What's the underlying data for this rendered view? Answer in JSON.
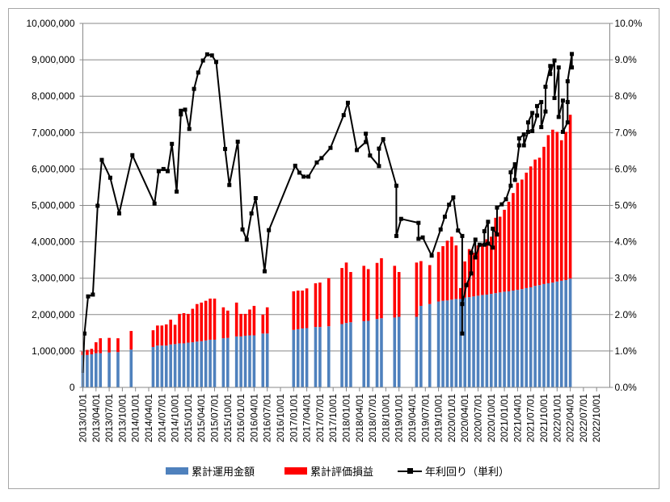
{
  "chart_data": {
    "type": "bar+line",
    "title": "",
    "y_left": {
      "min": 0,
      "max": 10000000,
      "step": 1000000,
      "tick_labels": [
        "0",
        "1,000,000",
        "2,000,000",
        "3,000,000",
        "4,000,000",
        "5,000,000",
        "6,000,000",
        "7,000,000",
        "8,000,000",
        "9,000,000",
        "10,000,000"
      ]
    },
    "y_right": {
      "min": 0,
      "max": 10,
      "step": 1,
      "tick_labels": [
        "0.0%",
        "1.0%",
        "2.0%",
        "3.0%",
        "4.0%",
        "5.0%",
        "6.0%",
        "7.0%",
        "8.0%",
        "9.0%",
        "10.0%"
      ]
    },
    "x_axis": {
      "min_year": 2013.0,
      "max_year": 2023.0,
      "tick_labels": [
        "2013/01/01",
        "2013/04/01",
        "2013/07/01",
        "2013/10/01",
        "2014/01/01",
        "2014/04/01",
        "2014/07/01",
        "2014/10/01",
        "2015/01/01",
        "2015/04/01",
        "2015/07/01",
        "2015/10/01",
        "2016/01/01",
        "2016/04/01",
        "2016/07/01",
        "2016/10/01",
        "2017/01/01",
        "2017/04/01",
        "2017/07/01",
        "2017/10/01",
        "2018/01/01",
        "2018/04/01",
        "2018/07/01",
        "2018/10/01",
        "2019/01/01",
        "2019/04/01",
        "2019/07/01",
        "2019/10/01",
        "2020/01/01",
        "2020/04/01",
        "2020/07/01",
        "2020/10/01",
        "2021/01/01",
        "2021/04/01",
        "2021/07/01",
        "2021/10/01",
        "2022/01/01",
        "2022/04/01",
        "2022/07/01",
        "2022/10/01"
      ]
    },
    "grid": true,
    "legend_position": "bottom",
    "colors": {
      "invested": "#4f81bd",
      "gain": "#ff0000",
      "rate": "#000000",
      "grid": "#888888"
    },
    "legend": [
      "累計運用金額",
      "累計評価損益",
      "年利回り（単利）"
    ],
    "bars": [
      [
        "2013-01",
        0.89,
        0.11
      ],
      [
        "2013-02",
        0.89,
        0.14
      ],
      [
        "2013-03",
        0.91,
        0.15
      ],
      [
        "2013-04",
        0.94,
        0.3
      ],
      [
        "2013-05",
        0.94,
        0.41
      ],
      [
        "2013-07",
        0.96,
        0.4
      ],
      [
        "2013-09",
        0.97,
        0.38
      ],
      [
        "2013-12",
        1.04,
        0.51
      ],
      [
        "2014-05",
        1.11,
        0.46
      ],
      [
        "2014-06",
        1.15,
        0.55
      ],
      [
        "2014-07",
        1.15,
        0.55
      ],
      [
        "2014-08",
        1.15,
        0.58
      ],
      [
        "2014-09",
        1.18,
        0.68
      ],
      [
        "2014-10",
        1.19,
        0.53
      ],
      [
        "2014-11",
        1.21,
        0.81
      ],
      [
        "2014-12",
        1.21,
        0.83
      ],
      [
        "2015-01",
        1.23,
        0.79
      ],
      [
        "2015-02",
        1.24,
        0.92
      ],
      [
        "2015-03",
        1.26,
        1.03
      ],
      [
        "2015-04",
        1.27,
        1.06
      ],
      [
        "2015-05",
        1.29,
        1.09
      ],
      [
        "2015-06",
        1.31,
        1.13
      ],
      [
        "2015-07",
        1.31,
        1.13
      ],
      [
        "2015-09",
        1.35,
        0.85
      ],
      [
        "2015-10",
        1.36,
        0.75
      ],
      [
        "2015-12",
        1.4,
        0.93
      ],
      [
        "2016-01",
        1.4,
        0.62
      ],
      [
        "2016-02",
        1.42,
        0.6
      ],
      [
        "2016-03",
        1.43,
        0.71
      ],
      [
        "2016-04",
        1.43,
        0.81
      ],
      [
        "2016-06",
        1.48,
        0.52
      ],
      [
        "2016-07",
        1.48,
        0.72
      ],
      [
        "2017-01",
        1.58,
        1.06
      ],
      [
        "2017-02",
        1.6,
        1.06
      ],
      [
        "2017-03",
        1.62,
        1.04
      ],
      [
        "2017-04",
        1.63,
        1.09
      ],
      [
        "2017-06",
        1.66,
        1.2
      ],
      [
        "2017-07",
        1.66,
        1.22
      ],
      [
        "2017-09",
        1.68,
        1.32
      ],
      [
        "2017-12",
        1.74,
        1.54
      ],
      [
        "2018-01",
        1.77,
        1.66
      ],
      [
        "2018-02",
        1.79,
        1.38
      ],
      [
        "2018-05",
        1.82,
        1.52
      ],
      [
        "2018-06",
        1.83,
        1.42
      ],
      [
        "2018-08",
        1.88,
        1.54
      ],
      [
        "2018-09",
        1.9,
        1.65
      ],
      [
        "2018-12",
        1.92,
        1.42
      ],
      [
        "2019-01",
        1.94,
        1.23
      ],
      [
        "2019-05",
        1.94,
        1.49
      ],
      [
        "2019-06",
        2.24,
        1.23
      ],
      [
        "2019-08",
        2.29,
        1.07
      ],
      [
        "2019-10",
        2.36,
        1.36
      ],
      [
        "2019-11",
        2.38,
        1.5
      ],
      [
        "2019-12",
        2.39,
        1.64
      ],
      [
        "2020-01",
        2.41,
        1.73
      ],
      [
        "2020-02",
        2.43,
        1.47
      ],
      [
        "2020-03",
        2.43,
        0.3
      ],
      [
        "2020-04",
        2.47,
        0.99
      ],
      [
        "2020-05",
        2.48,
        1.32
      ],
      [
        "2020-06",
        2.5,
        1.2
      ],
      [
        "2020-07",
        2.52,
        1.38
      ],
      [
        "2020-08",
        2.54,
        1.41
      ],
      [
        "2020-09",
        2.55,
        1.52
      ],
      [
        "2020-10",
        2.57,
        1.57
      ],
      [
        "2020-11",
        2.59,
        2.07
      ],
      [
        "2020-12",
        2.61,
        2.08
      ],
      [
        "2021-01",
        2.63,
        2.25
      ],
      [
        "2021-02",
        2.64,
        2.46
      ],
      [
        "2021-03",
        2.66,
        2.68
      ],
      [
        "2021-04",
        2.68,
        2.94
      ],
      [
        "2021-05",
        2.7,
        3.01
      ],
      [
        "2021-06",
        2.73,
        3.17
      ],
      [
        "2021-07",
        2.75,
        3.32
      ],
      [
        "2021-08",
        2.79,
        3.47
      ],
      [
        "2021-09",
        2.81,
        3.5
      ],
      [
        "2021-10",
        2.84,
        3.77
      ],
      [
        "2021-11",
        2.86,
        4.07
      ],
      [
        "2021-12",
        2.88,
        4.2
      ],
      [
        "2022-01",
        2.91,
        4.11
      ],
      [
        "2022-02",
        2.93,
        3.86
      ],
      [
        "2022-03",
        2.95,
        4.07
      ],
      [
        "2022-04",
        2.99,
        4.5
      ]
    ],
    "bars_units": "[month, 累計運用金額 (millions JPY), 累計評価損益 (millions JPY)]",
    "rate_line": [
      [
        2013.0,
        0.4
      ],
      [
        2013.03,
        1.48
      ],
      [
        2013.1,
        2.5
      ],
      [
        2013.19,
        2.55
      ],
      [
        2013.28,
        4.99
      ],
      [
        2013.36,
        6.25
      ],
      [
        2013.52,
        5.76
      ],
      [
        2013.69,
        4.78
      ],
      [
        2013.94,
        6.38
      ],
      [
        2014.36,
        5.05
      ],
      [
        2014.44,
        5.94
      ],
      [
        2014.53,
        6.0
      ],
      [
        2014.61,
        5.94
      ],
      [
        2014.69,
        6.69
      ],
      [
        2014.78,
        5.38
      ],
      [
        2014.86,
        7.5
      ],
      [
        2014.86,
        7.6
      ],
      [
        2014.94,
        7.63
      ],
      [
        2015.02,
        7.1
      ],
      [
        2015.11,
        8.2
      ],
      [
        2015.19,
        8.65
      ],
      [
        2015.28,
        8.98
      ],
      [
        2015.36,
        9.15
      ],
      [
        2015.45,
        9.12
      ],
      [
        2015.53,
        8.94
      ],
      [
        2015.7,
        6.55
      ],
      [
        2015.78,
        5.56
      ],
      [
        2015.94,
        6.75
      ],
      [
        2016.03,
        4.34
      ],
      [
        2016.11,
        4.06
      ],
      [
        2016.2,
        4.78
      ],
      [
        2016.28,
        5.2
      ],
      [
        2016.45,
        3.19
      ],
      [
        2016.53,
        4.32
      ],
      [
        2017.03,
        6.09
      ],
      [
        2017.11,
        5.9
      ],
      [
        2017.19,
        5.79
      ],
      [
        2017.28,
        5.79
      ],
      [
        2017.44,
        6.18
      ],
      [
        2017.53,
        6.3
      ],
      [
        2017.7,
        6.58
      ],
      [
        2017.95,
        7.48
      ],
      [
        2018.03,
        7.82
      ],
      [
        2018.2,
        6.52
      ],
      [
        2018.37,
        6.74
      ],
      [
        2018.37,
        6.97
      ],
      [
        2018.45,
        6.37
      ],
      [
        2018.62,
        6.08
      ],
      [
        2018.62,
        6.56
      ],
      [
        2018.7,
        6.82
      ],
      [
        2018.95,
        5.54
      ],
      [
        2018.95,
        4.16
      ],
      [
        2019.04,
        4.63
      ],
      [
        2019.37,
        4.52
      ],
      [
        2019.37,
        4.08
      ],
      [
        2019.45,
        4.12
      ],
      [
        2019.62,
        3.62
      ],
      [
        2019.79,
        4.34
      ],
      [
        2019.87,
        4.69
      ],
      [
        2019.95,
        5.02
      ],
      [
        2020.03,
        5.22
      ],
      [
        2020.12,
        4.31
      ],
      [
        2020.2,
        4.16
      ],
      [
        2020.2,
        1.48
      ],
      [
        2020.2,
        2.29
      ],
      [
        2020.28,
        2.81
      ],
      [
        2020.37,
        3.13
      ],
      [
        2020.37,
        3.7
      ],
      [
        2020.45,
        4.06
      ],
      [
        2020.45,
        3.57
      ],
      [
        2020.53,
        3.92
      ],
      [
        2020.62,
        3.92
      ],
      [
        2020.62,
        4.29
      ],
      [
        2020.69,
        4.55
      ],
      [
        2020.69,
        3.95
      ],
      [
        2020.78,
        3.84
      ],
      [
        2020.78,
        4.36
      ],
      [
        2020.86,
        4.2
      ],
      [
        2020.86,
        4.94
      ],
      [
        2020.95,
        5.03
      ],
      [
        2021.03,
        5.17
      ],
      [
        2021.12,
        5.54
      ],
      [
        2021.12,
        5.91
      ],
      [
        2021.2,
        6.13
      ],
      [
        2021.2,
        5.7
      ],
      [
        2021.28,
        6.65
      ],
      [
        2021.28,
        6.84
      ],
      [
        2021.37,
        6.95
      ],
      [
        2021.37,
        6.65
      ],
      [
        2021.45,
        7.02
      ],
      [
        2021.45,
        7.28
      ],
      [
        2021.53,
        7.54
      ],
      [
        2021.53,
        7.04
      ],
      [
        2021.62,
        7.47
      ],
      [
        2021.62,
        7.73
      ],
      [
        2021.7,
        7.84
      ],
      [
        2021.7,
        7.15
      ],
      [
        2021.78,
        7.58
      ],
      [
        2021.78,
        8.26
      ],
      [
        2021.87,
        8.83
      ],
      [
        2021.87,
        8.61
      ],
      [
        2021.95,
        8.98
      ],
      [
        2021.95,
        7.95
      ],
      [
        2022.03,
        8.79
      ],
      [
        2022.03,
        7.43
      ],
      [
        2022.11,
        7.88
      ],
      [
        2022.11,
        7.02
      ],
      [
        2022.2,
        7.28
      ],
      [
        2022.2,
        7.84
      ],
      [
        2022.2,
        8.41
      ],
      [
        2022.28,
        9.16
      ],
      [
        2022.28,
        8.79
      ]
    ],
    "rate_units": "[decimal year, percent]"
  },
  "legend": {
    "invested_label": "累計運用金額",
    "gain_label": "累計評価損益",
    "rate_label": "年利回り（単利）"
  }
}
